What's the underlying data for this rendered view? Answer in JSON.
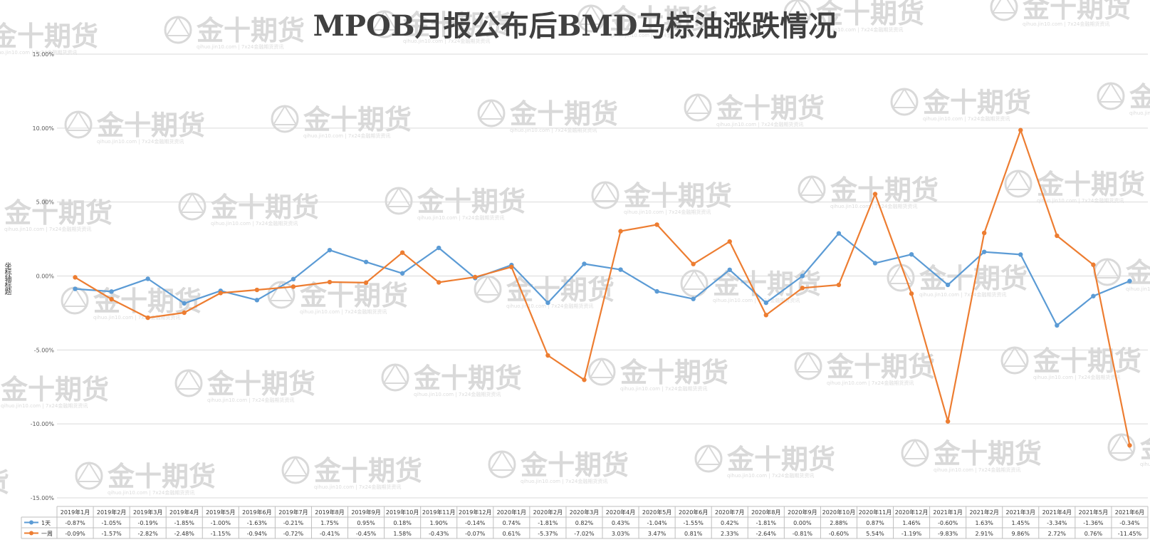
{
  "chart_data": {
    "type": "line",
    "title": "MPOB月报公布后BMD马棕油涨跌情况",
    "ylabel": "坐标轴标题",
    "ylim": [
      -15,
      15
    ],
    "yticks": [
      "15.00%",
      "10.00%",
      "5.00%",
      "0.00%",
      "-5.00%",
      "-10.00%",
      "-15.00%"
    ],
    "grid": true,
    "legend": "data-table-left",
    "categories": [
      "2019年1月",
      "2019年2月",
      "2019年3月",
      "2019年4月",
      "2019年5月",
      "2019年6月",
      "2019年7月",
      "2019年8月",
      "2019年9月",
      "2019年10月",
      "2019年11月",
      "2019年12月",
      "2020年1月",
      "2020年2月",
      "2020年3月",
      "2020年4月",
      "2020年5月",
      "2020年6月",
      "2020年7月",
      "2020年8月",
      "2020年9月",
      "2020年10月",
      "2020年11月",
      "2020年12月",
      "2021年1月",
      "2021年2月",
      "2021年3月",
      "2021年4月",
      "2021年5月",
      "2021年6月"
    ],
    "series": [
      {
        "name": "1天",
        "color": "#5b9bd5",
        "values": [
          -0.87,
          -1.05,
          -0.19,
          -1.85,
          -1.0,
          -1.63,
          -0.21,
          1.75,
          0.95,
          0.18,
          1.9,
          -0.14,
          0.74,
          -1.81,
          0.82,
          0.43,
          -1.04,
          -1.55,
          0.42,
          -1.81,
          0.0,
          2.88,
          0.87,
          1.46,
          -0.6,
          1.63,
          1.45,
          -3.34,
          -1.36,
          -0.34
        ],
        "labels": [
          "-0.87%",
          "-1.05%",
          "-0.19%",
          "-1.85%",
          "-1.00%",
          "-1.63%",
          "-0.21%",
          "1.75%",
          "0.95%",
          "0.18%",
          "1.90%",
          "-0.14%",
          "0.74%",
          "-1.81%",
          "0.82%",
          "0.43%",
          "-1.04%",
          "-1.55%",
          "0.42%",
          "-1.81%",
          "0.00%",
          "2.88%",
          "0.87%",
          "1.46%",
          "-0.60%",
          "1.63%",
          "1.45%",
          "-3.34%",
          "-1.36%",
          "-0.34%"
        ]
      },
      {
        "name": "一周",
        "color": "#ed7d31",
        "values": [
          -0.09,
          -1.57,
          -2.82,
          -2.48,
          -1.15,
          -0.94,
          -0.72,
          -0.41,
          -0.45,
          1.58,
          -0.43,
          -0.07,
          0.61,
          -5.37,
          -7.02,
          3.03,
          3.47,
          0.81,
          2.33,
          -2.64,
          -0.81,
          -0.6,
          5.54,
          -1.19,
          -9.83,
          2.91,
          9.86,
          2.72,
          0.76,
          -11.45
        ],
        "labels": [
          "-0.09%",
          "-1.57%",
          "-2.82%",
          "-2.48%",
          "-1.15%",
          "-0.94%",
          "-0.72%",
          "-0.41%",
          "-0.45%",
          "1.58%",
          "-0.43%",
          "-0.07%",
          "0.61%",
          "-5.37%",
          "-7.02%",
          "3.03%",
          "3.47%",
          "0.81%",
          "2.33%",
          "-2.64%",
          "-0.81%",
          "-0.60%",
          "5.54%",
          "-1.19%",
          "-9.83%",
          "2.91%",
          "9.86%",
          "2.72%",
          "0.76%",
          "-11.45%"
        ]
      }
    ]
  },
  "watermark": {
    "text": "金十期货",
    "sub": "qihuo.jin10.com | 7x24金融期货资讯",
    "color": "#d9d9d9"
  }
}
